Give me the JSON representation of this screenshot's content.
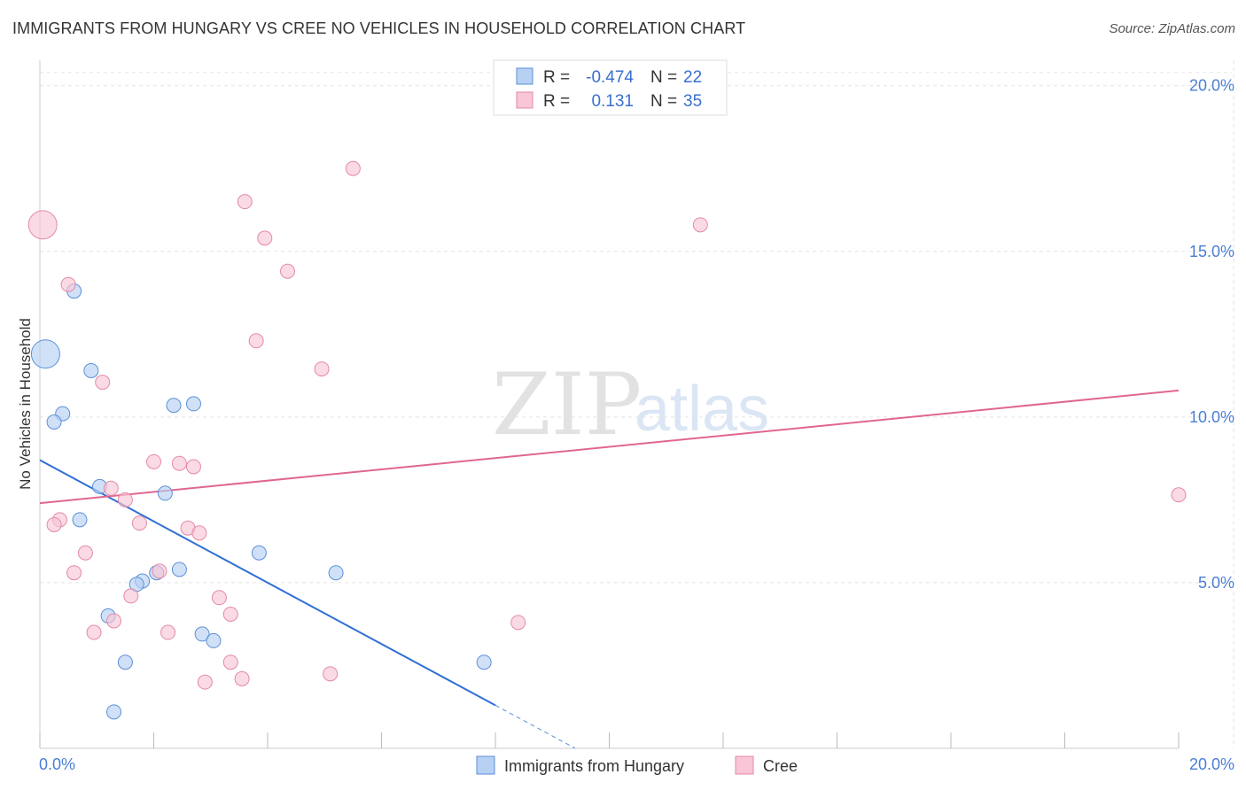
{
  "header": {
    "title": "IMMIGRANTS FROM HUNGARY VS CREE NO VEHICLES IN HOUSEHOLD CORRELATION CHART",
    "source": "Source: ZipAtlas.com"
  },
  "watermark": {
    "zip": "ZIP",
    "atlas": "atlas"
  },
  "colors": {
    "blue_fill": "#b7d1f3",
    "blue_stroke": "#5b8fd8",
    "blue_line": "#2e6fd4",
    "pink_fill": "#f8c6d6",
    "pink_stroke": "#e48aa6",
    "pink_line": "#e06690",
    "grid": "#e3e3e3",
    "axis_text": "#4a7fd4"
  },
  "stats_legend": {
    "rows": [
      {
        "r_label": "R =",
        "r_value": "-0.474",
        "n_label": "N =",
        "n_value": "22"
      },
      {
        "r_label": "R =",
        "r_value": "0.131",
        "n_label": "N =",
        "n_value": "35"
      }
    ]
  },
  "chart_data": {
    "type": "scatter",
    "title": "IMMIGRANTS FROM HUNGARY VS CREE NO VEHICLES IN HOUSEHOLD CORRELATION CHART",
    "xlabel": "",
    "ylabel": "No Vehicles in Household",
    "xlim": [
      0,
      20
    ],
    "ylim": [
      0,
      20.5
    ],
    "x_tick_labels": [
      "0.0%",
      "20.0%"
    ],
    "y_ticks": [
      5,
      10,
      15,
      20
    ],
    "y_tick_labels": [
      "5.0%",
      "10.0%",
      "15.0%",
      "20.0%"
    ],
    "grid": true,
    "series": [
      {
        "name": "Immigrants from Hungary",
        "color": "#5b8fd8",
        "r": -0.474,
        "n": 22,
        "points": [
          {
            "x": 0.1,
            "y": 11.9,
            "big": true
          },
          {
            "x": 0.6,
            "y": 13.8
          },
          {
            "x": 0.9,
            "y": 11.4
          },
          {
            "x": 0.4,
            "y": 10.1
          },
          {
            "x": 0.25,
            "y": 9.85
          },
          {
            "x": 2.35,
            "y": 10.35
          },
          {
            "x": 2.7,
            "y": 10.4
          },
          {
            "x": 1.05,
            "y": 7.9
          },
          {
            "x": 2.2,
            "y": 7.7
          },
          {
            "x": 0.7,
            "y": 6.9
          },
          {
            "x": 3.85,
            "y": 5.9
          },
          {
            "x": 5.2,
            "y": 5.3
          },
          {
            "x": 2.45,
            "y": 5.4
          },
          {
            "x": 2.05,
            "y": 5.3
          },
          {
            "x": 1.8,
            "y": 5.05
          },
          {
            "x": 1.7,
            "y": 4.95
          },
          {
            "x": 1.2,
            "y": 4.0
          },
          {
            "x": 2.85,
            "y": 3.45
          },
          {
            "x": 3.05,
            "y": 3.25
          },
          {
            "x": 1.5,
            "y": 2.6
          },
          {
            "x": 7.8,
            "y": 2.6
          },
          {
            "x": 1.3,
            "y": 1.1
          }
        ]
      },
      {
        "name": "Cree",
        "color": "#e48aa6",
        "r": 0.131,
        "n": 35,
        "points": [
          {
            "x": 0.05,
            "y": 15.8,
            "big": true
          },
          {
            "x": 5.5,
            "y": 17.5
          },
          {
            "x": 3.6,
            "y": 16.5
          },
          {
            "x": 11.6,
            "y": 15.8
          },
          {
            "x": 3.95,
            "y": 15.4
          },
          {
            "x": 4.35,
            "y": 14.4
          },
          {
            "x": 0.5,
            "y": 14.0
          },
          {
            "x": 3.8,
            "y": 12.3
          },
          {
            "x": 4.95,
            "y": 11.45
          },
          {
            "x": 1.1,
            "y": 11.05
          },
          {
            "x": 2.0,
            "y": 8.65
          },
          {
            "x": 2.45,
            "y": 8.6
          },
          {
            "x": 2.7,
            "y": 8.5
          },
          {
            "x": 1.25,
            "y": 7.85
          },
          {
            "x": 1.5,
            "y": 7.5
          },
          {
            "x": 20.0,
            "y": 7.65
          },
          {
            "x": 0.35,
            "y": 6.9
          },
          {
            "x": 0.25,
            "y": 6.75
          },
          {
            "x": 1.75,
            "y": 6.8
          },
          {
            "x": 2.6,
            "y": 6.65
          },
          {
            "x": 2.8,
            "y": 6.5
          },
          {
            "x": 0.8,
            "y": 5.9
          },
          {
            "x": 0.6,
            "y": 5.3
          },
          {
            "x": 2.1,
            "y": 5.35
          },
          {
            "x": 1.6,
            "y": 4.6
          },
          {
            "x": 3.15,
            "y": 4.55
          },
          {
            "x": 3.35,
            "y": 4.05
          },
          {
            "x": 8.4,
            "y": 3.8
          },
          {
            "x": 1.3,
            "y": 3.85
          },
          {
            "x": 0.95,
            "y": 3.5
          },
          {
            "x": 2.25,
            "y": 3.5
          },
          {
            "x": 3.35,
            "y": 2.6
          },
          {
            "x": 5.1,
            "y": 2.25
          },
          {
            "x": 3.55,
            "y": 2.1
          },
          {
            "x": 2.9,
            "y": 2.0
          }
        ]
      }
    ],
    "trend_lines": [
      {
        "series": "Immigrants from Hungary",
        "x0": 0,
        "y0": 8.7,
        "x1": 8.0,
        "y1": 1.3,
        "dashed_to_x": 9.4
      },
      {
        "series": "Cree",
        "x0": 0,
        "y0": 7.4,
        "x1": 20.0,
        "y1": 10.8
      }
    ]
  },
  "bottom_legend": {
    "items": [
      {
        "label": "Immigrants from Hungary"
      },
      {
        "label": "Cree"
      }
    ]
  }
}
